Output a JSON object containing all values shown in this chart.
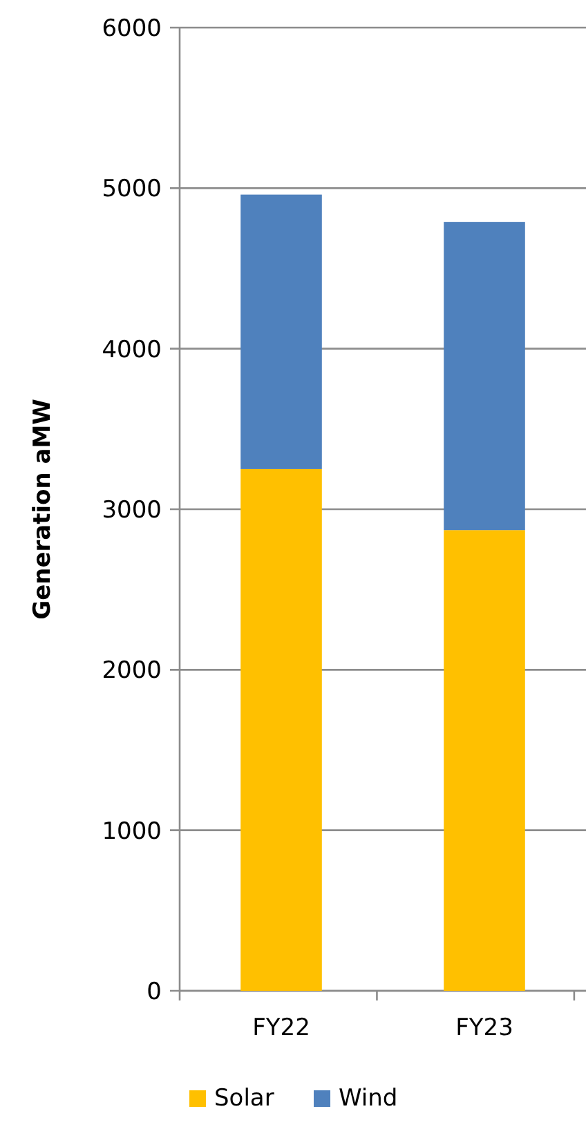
{
  "chart_data": {
    "type": "bar",
    "stacked": true,
    "ylabel": "Generation aMW",
    "categories": [
      "FY22",
      "FY23"
    ],
    "series": [
      {
        "name": "Solar",
        "color": "#ffc000",
        "values": [
          3250,
          2870
        ]
      },
      {
        "name": "Wind",
        "color": "#4f81bd",
        "values": [
          1710,
          1920
        ]
      }
    ],
    "ylim": [
      0,
      6000
    ],
    "yticks": [
      0,
      1000,
      2000,
      3000,
      4000,
      5000,
      6000
    ],
    "grid": "y",
    "legend": "bottom"
  }
}
